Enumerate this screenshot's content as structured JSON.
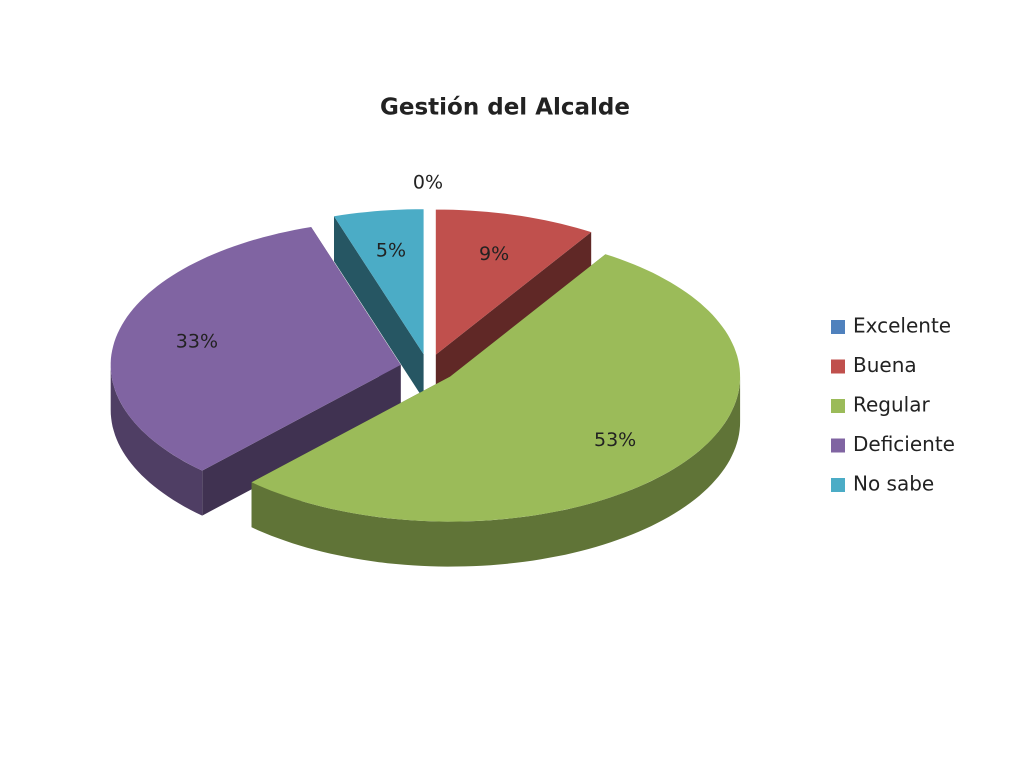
{
  "chart_data": {
    "type": "pie",
    "title": "Gestión del Alcalde",
    "categories": [
      "Excelente",
      "Buena",
      "Regular",
      "Deficiente",
      "No sabe"
    ],
    "values": [
      0,
      9,
      53,
      33,
      5
    ],
    "value_labels": [
      "0%",
      "9%",
      "53%",
      "33%",
      "5%"
    ],
    "colors": [
      "#4f81bd",
      "#c0504d",
      "#9bbb59",
      "#8064a2",
      "#4bacc6"
    ],
    "legend": "right"
  }
}
